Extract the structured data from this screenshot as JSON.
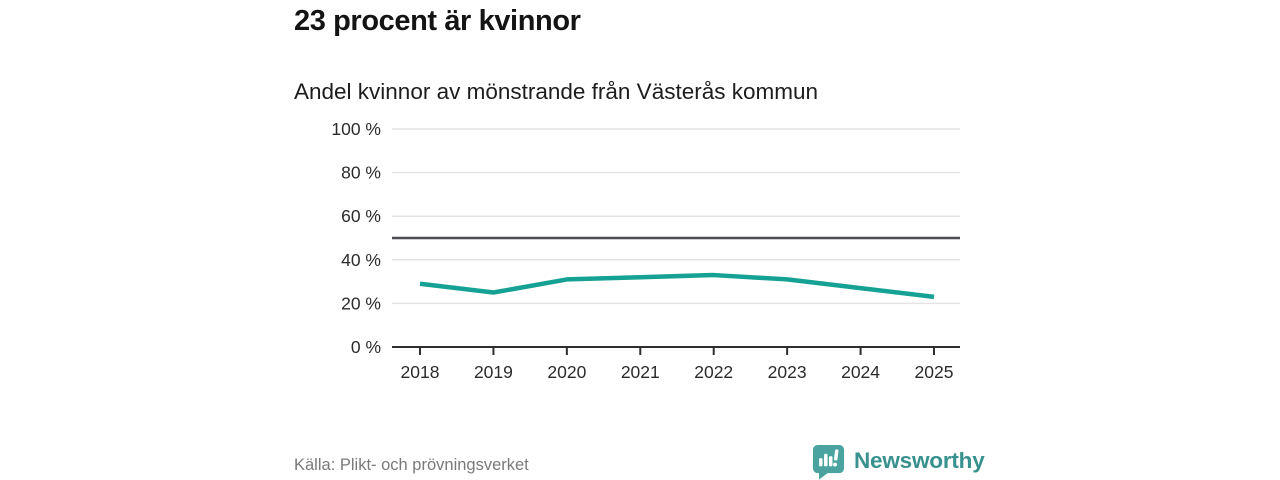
{
  "header": {
    "title": "23 procent är kvinnor",
    "subtitle": "Andel kvinnor av mönstrande från Västerås kommun"
  },
  "chart_data": {
    "type": "line",
    "title": "23 procent är kvinnor",
    "subtitle": "Andel kvinnor av mönstrande från Västerås kommun",
    "x": [
      2018,
      2019,
      2020,
      2021,
      2022,
      2023,
      2024,
      2025
    ],
    "series": [
      {
        "name": "Andel kvinnor av mönstrande",
        "values": [
          29,
          25,
          31,
          32,
          33,
          31,
          27,
          23
        ]
      }
    ],
    "xlabel": "",
    "ylabel": "",
    "ylim": [
      0,
      100
    ],
    "yticks": [
      0,
      20,
      40,
      60,
      80,
      100
    ],
    "ytick_suffix": " %",
    "reference_line": 50,
    "grid": true,
    "legend": "none",
    "line_color": "#15a294",
    "grid_color": "#e4e4e4",
    "axis_color": "#2e2e2e",
    "reference_line_color": "#4c4c52",
    "tick_label_color": "#2b2b2b"
  },
  "footer": {
    "source": "Källa: Plikt- och prövningsverket",
    "brand_name": "Newsworthy"
  },
  "colors": {
    "background": "#ffffff",
    "accent_teal": "#15a294",
    "brand_text": "#38918e",
    "logo_fill": "#4aa39e",
    "title_text": "#141414",
    "source_text": "#7a7a7a"
  }
}
